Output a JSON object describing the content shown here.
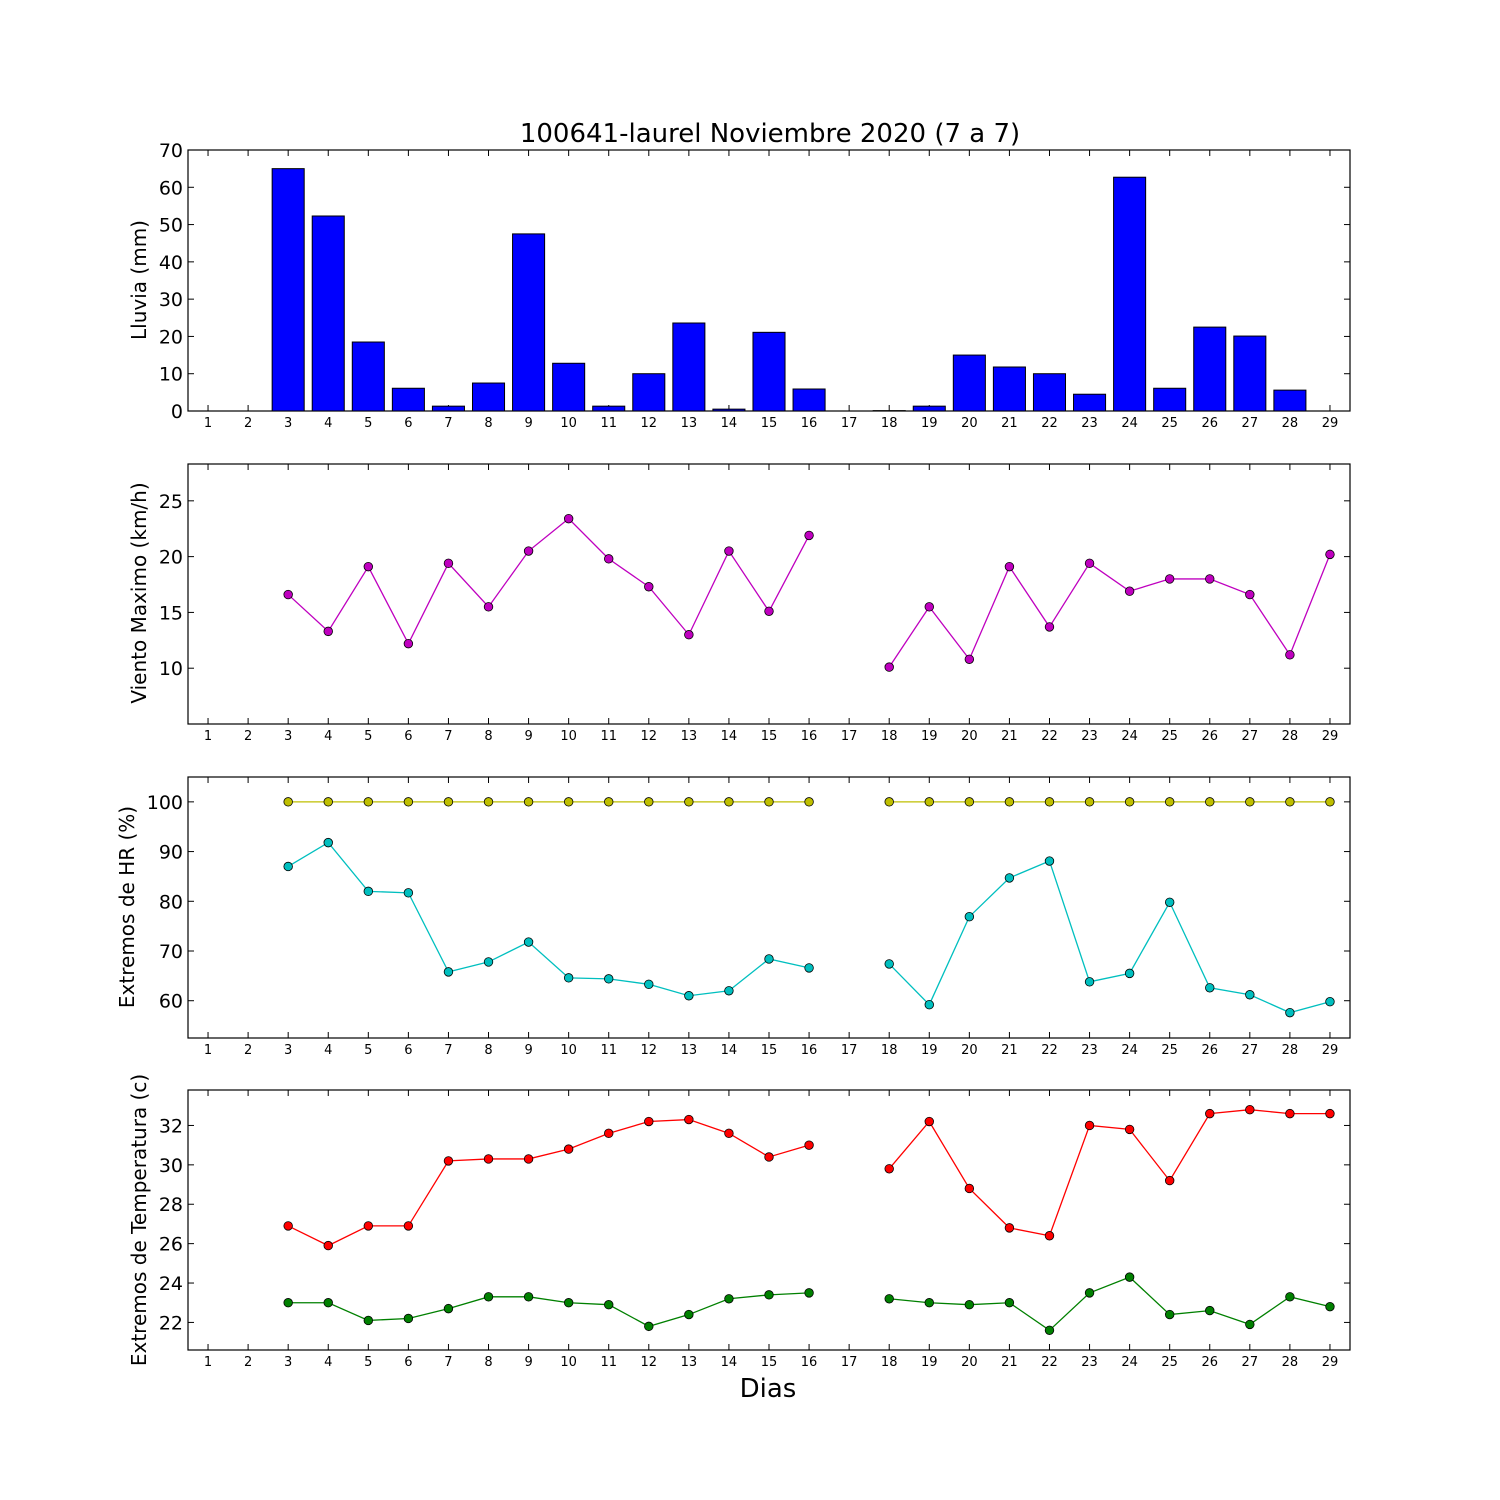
{
  "chart_data": [
    {
      "type": "bar",
      "title": "100641-laurel Noviembre 2020  (7 a 7)",
      "ylabel": "Lluvia (mm)",
      "xlabel": "",
      "ylim": [
        0,
        70
      ],
      "yticks": [
        0,
        10,
        20,
        30,
        40,
        50,
        60,
        70
      ],
      "categories": [
        "1",
        "2",
        "3",
        "4",
        "5",
        "6",
        "7",
        "8",
        "9",
        "10",
        "11",
        "12",
        "13",
        "14",
        "15",
        "16",
        "17",
        "18",
        "19",
        "20",
        "21",
        "22",
        "23",
        "24",
        "25",
        "26",
        "27",
        "28",
        "29"
      ],
      "color": "#0000ff",
      "values": [
        0,
        0,
        65.0,
        52.3,
        18.5,
        6.1,
        1.3,
        7.5,
        47.5,
        12.8,
        1.3,
        10.0,
        23.6,
        0.5,
        21.1,
        5.9,
        0,
        0.1,
        1.3,
        15.0,
        11.8,
        10.0,
        4.5,
        62.7,
        6.1,
        22.5,
        20.1,
        5.6,
        0
      ]
    },
    {
      "type": "line",
      "title": "",
      "ylabel": "Viento Maximo (km/h)",
      "xlabel": "",
      "ylim": [
        5,
        28.3
      ],
      "yticks": [
        10,
        15,
        20,
        25
      ],
      "categories": [
        "1",
        "2",
        "3",
        "4",
        "5",
        "6",
        "7",
        "8",
        "9",
        "10",
        "11",
        "12",
        "13",
        "14",
        "15",
        "16",
        "17",
        "18",
        "19",
        "20",
        "21",
        "22",
        "23",
        "24",
        "25",
        "26",
        "27",
        "28",
        "29"
      ],
      "series": [
        {
          "color": "#bf00bf",
          "values": [
            null,
            null,
            16.6,
            13.3,
            19.1,
            12.2,
            19.4,
            15.5,
            20.5,
            23.4,
            19.8,
            17.3,
            13.0,
            20.5,
            15.1,
            21.9,
            null,
            10.1,
            15.5,
            10.8,
            19.1,
            13.7,
            19.4,
            16.9,
            18.0,
            18.0,
            16.6,
            11.2,
            20.2
          ]
        }
      ]
    },
    {
      "type": "line",
      "title": "",
      "ylabel": "Extremos de HR (%)",
      "xlabel": "",
      "ylim": [
        52.5,
        105
      ],
      "yticks": [
        60,
        70,
        80,
        90,
        100
      ],
      "categories": [
        "1",
        "2",
        "3",
        "4",
        "5",
        "6",
        "7",
        "8",
        "9",
        "10",
        "11",
        "12",
        "13",
        "14",
        "15",
        "16",
        "17",
        "18",
        "19",
        "20",
        "21",
        "22",
        "23",
        "24",
        "25",
        "26",
        "27",
        "28",
        "29"
      ],
      "series": [
        {
          "color": "#bfbf00",
          "values": [
            null,
            null,
            100,
            100,
            100,
            100,
            100,
            100,
            100,
            100,
            100,
            100,
            100,
            100,
            100,
            100,
            null,
            100,
            100,
            100,
            100,
            100,
            100,
            100,
            100,
            100,
            100,
            100,
            100
          ]
        },
        {
          "color": "#00bfbf",
          "values": [
            null,
            null,
            87.0,
            91.8,
            82.0,
            81.7,
            65.8,
            67.8,
            71.8,
            64.6,
            64.4,
            63.3,
            61.0,
            62.0,
            68.4,
            66.6,
            null,
            67.4,
            59.2,
            76.9,
            84.7,
            88.1,
            63.8,
            65.5,
            79.8,
            62.6,
            61.2,
            57.6,
            59.8
          ]
        }
      ]
    },
    {
      "type": "line",
      "title": "",
      "ylabel": "Extremos de Temperatura (c)",
      "xlabel": "Dias",
      "ylim": [
        20.6,
        33.8
      ],
      "yticks": [
        22,
        24,
        26,
        28,
        30,
        32
      ],
      "categories": [
        "1",
        "2",
        "3",
        "4",
        "5",
        "6",
        "7",
        "8",
        "9",
        "10",
        "11",
        "12",
        "13",
        "14",
        "15",
        "16",
        "17",
        "18",
        "19",
        "20",
        "21",
        "22",
        "23",
        "24",
        "25",
        "26",
        "27",
        "28",
        "29"
      ],
      "series": [
        {
          "color": "#ff0000",
          "values": [
            null,
            null,
            26.9,
            25.9,
            26.9,
            26.9,
            30.2,
            30.3,
            30.3,
            30.8,
            31.6,
            32.2,
            32.3,
            31.6,
            30.4,
            31.0,
            null,
            29.8,
            32.2,
            28.8,
            26.8,
            26.4,
            32.0,
            31.8,
            29.2,
            32.6,
            32.8,
            32.6,
            32.6
          ]
        },
        {
          "color": "#008000",
          "values": [
            null,
            null,
            23.0,
            23.0,
            22.1,
            22.2,
            22.7,
            23.3,
            23.3,
            23.0,
            22.9,
            21.8,
            22.4,
            23.2,
            23.4,
            23.5,
            null,
            23.2,
            23.0,
            22.9,
            23.0,
            21.6,
            23.5,
            24.3,
            22.4,
            22.6,
            21.9,
            23.3,
            22.8
          ]
        }
      ]
    }
  ]
}
